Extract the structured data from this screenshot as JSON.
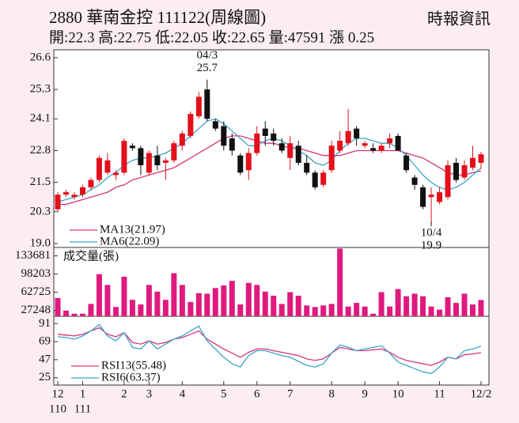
{
  "chart_data": [
    {
      "type": "candlestick",
      "title": "2880  華南金控 111122(周線圖)",
      "source": "時報資訊",
      "subtitle": "開:22.3 高:22.75 低:22.05 收:22.65 量:47591 漲 0.25",
      "categories": [
        "12",
        null,
        null,
        "1",
        null,
        null,
        null,
        null,
        "2",
        null,
        null,
        "3",
        null,
        null,
        null,
        "4",
        null,
        null,
        null,
        null,
        "5",
        null,
        null,
        null,
        "6",
        null,
        null,
        null,
        "7",
        null,
        null,
        null,
        null,
        "8",
        null,
        null,
        null,
        "9",
        null,
        null,
        null,
        "10",
        null,
        null,
        null,
        null,
        "11",
        null,
        null,
        null,
        null,
        "12/2"
      ],
      "year_labels": [
        "110",
        null,
        null,
        "111",
        null,
        null,
        null,
        null,
        null,
        null,
        null,
        null,
        null,
        null,
        null,
        null,
        null,
        null,
        null,
        null,
        null,
        null,
        null,
        null,
        null,
        null,
        null,
        null,
        null,
        null,
        null,
        null,
        null,
        null,
        null,
        null,
        null,
        null,
        null,
        null,
        null,
        null,
        null,
        null,
        null,
        null,
        null,
        null,
        null,
        null,
        null,
        null
      ],
      "open": [
        20.4,
        21.0,
        20.9,
        21.0,
        21.3,
        21.6,
        21.9,
        21.8,
        21.9,
        23.0,
        22.9,
        21.9,
        22.6,
        22.3,
        22.4,
        23.0,
        23.4,
        24.2,
        25.3,
        24.0,
        23.8,
        23.3,
        22.6,
        22.0,
        22.7,
        23.7,
        23.5,
        23.1,
        22.5,
        23.0,
        22.3,
        21.9,
        21.4,
        22.0,
        22.8,
        23.1,
        23.7,
        23.0,
        22.9,
        22.8,
        23.1,
        23.4,
        22.6,
        21.7,
        21.3,
        20.9,
        20.7,
        20.9,
        22.3,
        21.7,
        22.1,
        22.3
      ],
      "high": [
        21.1,
        21.2,
        21.1,
        21.4,
        21.7,
        22.6,
        22.7,
        22.0,
        23.3,
        23.1,
        23.0,
        22.8,
        23.0,
        22.5,
        23.2,
        23.6,
        24.4,
        25.2,
        25.7,
        24.1,
        24.0,
        23.5,
        22.7,
        22.9,
        23.8,
        24.0,
        23.7,
        23.3,
        23.4,
        23.2,
        22.6,
        22.0,
        22.0,
        23.2,
        23.6,
        24.5,
        23.8,
        23.2,
        23.1,
        23.1,
        23.5,
        23.5,
        22.7,
        21.8,
        21.4,
        21.3,
        21.3,
        22.4,
        22.5,
        22.4,
        23.0,
        22.75
      ],
      "low": [
        20.3,
        20.9,
        20.8,
        20.9,
        21.2,
        21.5,
        21.8,
        21.6,
        21.8,
        22.8,
        21.8,
        21.8,
        22.0,
        21.6,
        22.3,
        22.8,
        23.3,
        24.1,
        24.0,
        23.6,
        22.8,
        22.6,
        21.8,
        21.6,
        22.6,
        23.0,
        23.0,
        22.7,
        22.0,
        22.2,
        21.8,
        21.2,
        21.3,
        21.9,
        22.7,
        23.0,
        23.0,
        22.9,
        22.7,
        22.7,
        22.9,
        22.8,
        21.9,
        21.2,
        20.4,
        19.9,
        20.6,
        20.8,
        21.5,
        21.6,
        22.0,
        22.05
      ],
      "close": [
        21.0,
        21.1,
        21.0,
        21.3,
        21.6,
        22.5,
        22.4,
        21.9,
        23.2,
        22.9,
        22.2,
        22.7,
        22.2,
        22.4,
        23.1,
        23.5,
        24.3,
        25.0,
        24.1,
        23.7,
        23.0,
        22.8,
        21.9,
        22.7,
        23.5,
        23.4,
        23.2,
        22.8,
        23.1,
        22.3,
        21.9,
        21.3,
        21.9,
        23.0,
        23.2,
        23.6,
        23.3,
        23.1,
        22.8,
        23.0,
        23.3,
        22.8,
        22.0,
        21.4,
        20.5,
        21.0,
        21.1,
        22.2,
        21.6,
        22.2,
        22.5,
        22.65
      ],
      "up_color": "#e3101c",
      "down_color": "#111111",
      "series": [
        {
          "name": "MA13(21.97)",
          "color": "#d6337a",
          "values": [
            20.6,
            20.6,
            20.7,
            20.8,
            20.9,
            21.0,
            21.1,
            21.3,
            21.4,
            21.6,
            21.7,
            21.8,
            21.9,
            22.0,
            22.1,
            22.3,
            22.5,
            22.7,
            22.9,
            23.1,
            23.3,
            23.4,
            23.4,
            23.3,
            23.2,
            23.1,
            23.1,
            23.0,
            22.9,
            22.9,
            22.8,
            22.7,
            22.6,
            22.6,
            22.6,
            22.7,
            22.8,
            22.8,
            22.8,
            22.8,
            22.8,
            22.8,
            22.7,
            22.6,
            22.5,
            22.3,
            22.1,
            21.9,
            21.8,
            21.8,
            21.9,
            21.97
          ]
        },
        {
          "name": "MA6(22.09)",
          "color": "#3aa3c8",
          "values": [
            20.7,
            20.8,
            20.9,
            21.0,
            21.2,
            21.4,
            21.7,
            21.9,
            22.2,
            22.4,
            22.5,
            22.5,
            22.6,
            22.7,
            22.9,
            23.1,
            23.4,
            23.7,
            24.0,
            24.1,
            23.9,
            23.6,
            23.3,
            23.0,
            23.0,
            23.2,
            23.3,
            23.2,
            23.0,
            22.8,
            22.6,
            22.3,
            22.2,
            22.4,
            22.8,
            23.1,
            23.3,
            23.3,
            23.2,
            23.1,
            23.1,
            22.9,
            22.6,
            22.2,
            21.8,
            21.5,
            21.3,
            21.2,
            21.3,
            21.5,
            21.8,
            22.09
          ]
        }
      ],
      "annotations": [
        {
          "label": "04/3",
          "value": 25.7,
          "kind": "high"
        },
        {
          "label": "10/4",
          "value": 19.9,
          "kind": "low"
        }
      ],
      "ylim": [
        18.84,
        26.92
      ],
      "yticks": [
        26.6,
        25.3,
        24.1,
        22.8,
        21.5,
        20.3,
        {
          "value": 19,
          "label": "19.0"
        }
      ]
    },
    {
      "type": "bar",
      "title": "成交量(張)",
      "color": "#df1a7f",
      "values": [
        51600,
        27000,
        21000,
        21000,
        40000,
        98000,
        77000,
        34000,
        93000,
        48000,
        39000,
        77000,
        64000,
        48000,
        100000,
        77000,
        44000,
        61000,
        60000,
        71000,
        76000,
        85000,
        39000,
        81000,
        77000,
        64000,
        56000,
        40000,
        63000,
        56000,
        37000,
        34000,
        37000,
        40000,
        148000,
        35000,
        42000,
        35000,
        21000,
        63000,
        35000,
        69000,
        55000,
        60000,
        55000,
        35000,
        29000,
        53000,
        42000,
        60000,
        39000,
        47591
      ],
      "ylim": [
        16000,
        150000
      ],
      "yticks": [
        133681,
        98203,
        62725,
        27248
      ]
    },
    {
      "type": "line",
      "series": [
        {
          "name": "RSI13(55.48)",
          "color": "#d6337a",
          "values": [
            78,
            77,
            76,
            78,
            82,
            86,
            78,
            75,
            80,
            68,
            66,
            70,
            66,
            68,
            72,
            74,
            78,
            82,
            72,
            66,
            60,
            55,
            50,
            56,
            60,
            60,
            58,
            56,
            54,
            52,
            48,
            46,
            48,
            55,
            62,
            60,
            58,
            58,
            59,
            60,
            56,
            50,
            46,
            44,
            42,
            40,
            44,
            50,
            48,
            53,
            54,
            55.48
          ]
        },
        {
          "name": "RSI6(63.37)",
          "color": "#3aa3c8",
          "values": [
            75,
            74,
            72,
            76,
            82,
            90,
            76,
            70,
            80,
            62,
            60,
            70,
            60,
            66,
            72,
            76,
            82,
            88,
            70,
            60,
            50,
            42,
            38,
            52,
            58,
            58,
            55,
            52,
            50,
            45,
            40,
            38,
            42,
            55,
            65,
            62,
            58,
            60,
            62,
            64,
            55,
            44,
            40,
            36,
            32,
            30,
            38,
            50,
            48,
            58,
            60,
            63.37
          ]
        }
      ],
      "ylim": [
        16,
        100
      ],
      "yticks": [
        91,
        69,
        47,
        25
      ]
    }
  ]
}
